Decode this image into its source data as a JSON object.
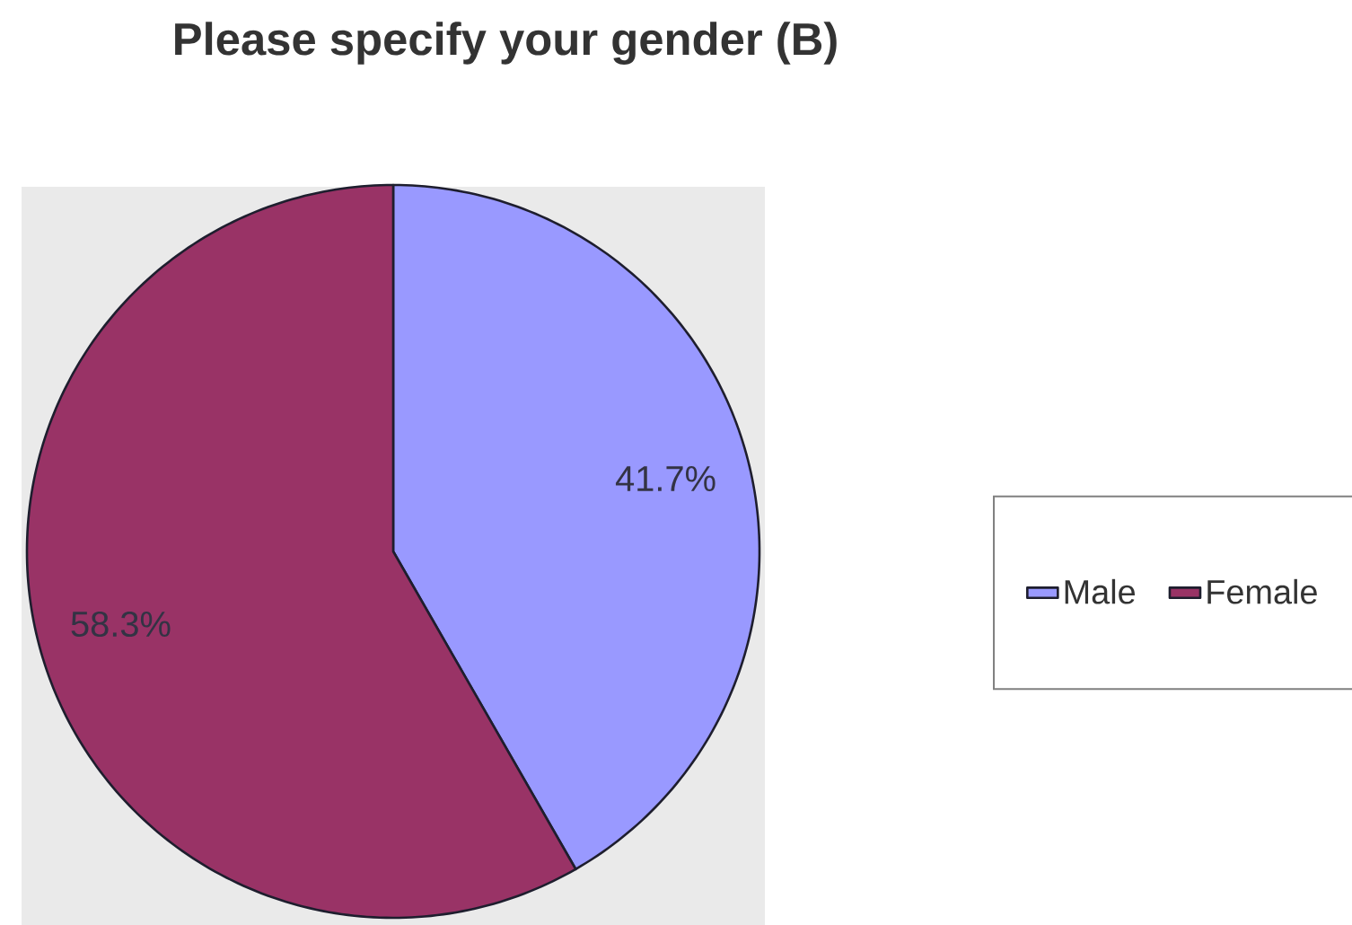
{
  "chart_data": {
    "type": "pie",
    "title": "Please specify your gender (B)",
    "categories": [
      "Male",
      "Female"
    ],
    "values": [
      41.7,
      58.3
    ],
    "colors": [
      "#9999ff",
      "#993366"
    ],
    "value_labels": [
      "41.7%",
      "58.3%"
    ],
    "legend": "right"
  }
}
